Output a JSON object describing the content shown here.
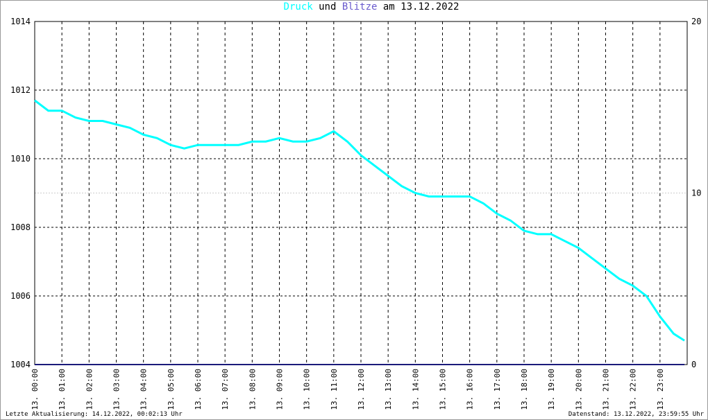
{
  "chart_data": {
    "type": "line",
    "title_parts": [
      "Druck",
      "und",
      "Blitze",
      "am 13.12.2022"
    ],
    "footer_left": "Letzte Aktualisierung: 14.12.2022, 00:02:13 Uhr",
    "footer_right": "Datenstand: 13.12.2022, 23:59:55 Uhr",
    "x": [
      0,
      0.5,
      1,
      1.5,
      2,
      2.5,
      3,
      3.5,
      4,
      4.5,
      5,
      5.5,
      6,
      6.5,
      7,
      7.5,
      8,
      8.5,
      9,
      9.5,
      10,
      10.5,
      11,
      11.5,
      12,
      12.5,
      13,
      13.5,
      14,
      14.5,
      15,
      15.5,
      16,
      16.5,
      17,
      17.5,
      18,
      18.5,
      19,
      19.5,
      20,
      20.5,
      21,
      21.5,
      22,
      22.5,
      23,
      23.5,
      23.9
    ],
    "xlim": [
      0,
      24
    ],
    "xticks": [
      {
        "value": 0,
        "label": "13. 00:00"
      },
      {
        "value": 1,
        "label": "13. 01:00"
      },
      {
        "value": 2,
        "label": "13. 02:00"
      },
      {
        "value": 3,
        "label": "13. 03:00"
      },
      {
        "value": 4,
        "label": "13. 04:00"
      },
      {
        "value": 5,
        "label": "13. 05:00"
      },
      {
        "value": 6,
        "label": "13. 06:00"
      },
      {
        "value": 7,
        "label": "13. 07:00"
      },
      {
        "value": 8,
        "label": "13. 08:00"
      },
      {
        "value": 9,
        "label": "13. 09:00"
      },
      {
        "value": 10,
        "label": "13. 10:00"
      },
      {
        "value": 11,
        "label": "13. 11:00"
      },
      {
        "value": 12,
        "label": "13. 12:00"
      },
      {
        "value": 13,
        "label": "13. 13:00"
      },
      {
        "value": 14,
        "label": "13. 14:00"
      },
      {
        "value": 15,
        "label": "13. 15:00"
      },
      {
        "value": 16,
        "label": "13. 16:00"
      },
      {
        "value": 17,
        "label": "13. 17:00"
      },
      {
        "value": 18,
        "label": "13. 18:00"
      },
      {
        "value": 19,
        "label": "13. 19:00"
      },
      {
        "value": 20,
        "label": "13. 20:00"
      },
      {
        "value": 21,
        "label": "13. 21:00"
      },
      {
        "value": 22,
        "label": "13. 22:00"
      },
      {
        "value": 23,
        "label": "13. 23:00"
      }
    ],
    "ylim": [
      1004,
      1014
    ],
    "yticks": [
      1004,
      1006,
      1008,
      1010,
      1012,
      1014
    ],
    "y2lim": [
      0,
      20
    ],
    "y2ticks": [
      0,
      10,
      20
    ],
    "grid": true,
    "series": [
      {
        "name": "Druck",
        "color": "#00ffff",
        "values": [
          1011.7,
          1011.4,
          1011.4,
          1011.2,
          1011.1,
          1011.1,
          1011.0,
          1010.9,
          1010.7,
          1010.6,
          1010.4,
          1010.3,
          1010.4,
          1010.4,
          1010.4,
          1010.4,
          1010.5,
          1010.5,
          1010.6,
          1010.5,
          1010.5,
          1010.6,
          1010.8,
          1010.5,
          1010.1,
          1009.8,
          1009.5,
          1009.2,
          1009.0,
          1008.9,
          1008.9,
          1008.9,
          1008.9,
          1008.7,
          1008.4,
          1008.2,
          1007.9,
          1007.8,
          1007.8,
          1007.6,
          1007.4,
          1007.1,
          1006.8,
          1006.5,
          1006.3,
          1006.0,
          1005.4,
          1004.9,
          1004.7
        ]
      },
      {
        "name": "Blitze",
        "color": "#1a1a7a",
        "axis": "y2",
        "values": [
          0,
          0,
          0,
          0,
          0,
          0,
          0,
          0,
          0,
          0,
          0,
          0,
          0,
          0,
          0,
          0,
          0,
          0,
          0,
          0,
          0,
          0,
          0,
          0,
          0,
          0,
          0,
          0,
          0,
          0,
          0,
          0,
          0,
          0,
          0,
          0,
          0,
          0,
          0,
          0,
          0,
          0,
          0,
          0,
          0,
          0,
          0,
          0,
          0
        ]
      }
    ]
  }
}
